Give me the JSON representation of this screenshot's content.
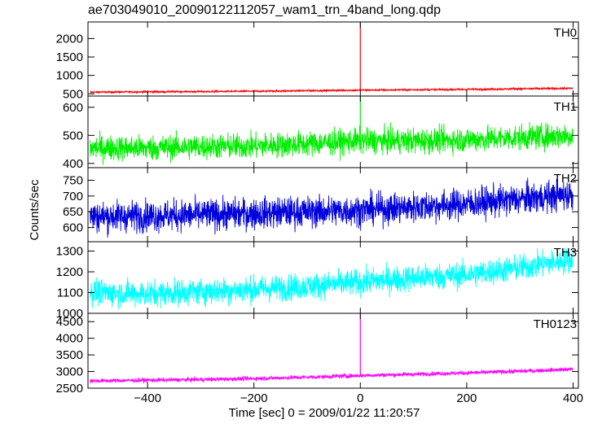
{
  "chart_data": {
    "type": "line",
    "title": "ae703049010_20090122112057_wam1_trn_4band_long.qdp",
    "xlabel": "Time [sec] 0 = 2009/01/22 11:20:57",
    "ylabel": "Counts/sec",
    "xlim": [
      -512,
      410
    ],
    "x_ticks": [
      -400,
      -200,
      0,
      200,
      400
    ],
    "x_tick_labels": [
      "−400",
      "−200",
      "0",
      "200",
      "400"
    ],
    "panels": [
      {
        "name": "TH0",
        "color": "#ff0000",
        "ylim": [
          440,
          2450
        ],
        "y_ticks": [
          500,
          1000,
          1500,
          2000
        ],
        "y_tick_labels": [
          "500",
          "1000",
          "1500",
          "2000"
        ],
        "series": {
          "x": [
            -500,
            -400,
            -300,
            -200,
            -100,
            0,
            100,
            200,
            300,
            400
          ],
          "y": [
            545,
            555,
            560,
            570,
            585,
            600,
            610,
            620,
            635,
            650
          ]
        },
        "noise": 18,
        "spike": {
          "x": 0,
          "y": 2450
        }
      },
      {
        "name": "TH1",
        "color": "#00ee00",
        "ylim": [
          385,
          640
        ],
        "y_ticks": [
          400,
          500,
          600
        ],
        "y_tick_labels": [
          "400",
          "500",
          "600"
        ],
        "series": {
          "x": [
            -500,
            -400,
            -300,
            -200,
            -100,
            0,
            100,
            200,
            300,
            400
          ],
          "y": [
            455,
            455,
            460,
            462,
            470,
            480,
            480,
            485,
            492,
            500
          ]
        },
        "noise": 32,
        "spike": {
          "x": 0,
          "y": 640
        }
      },
      {
        "name": "TH2",
        "color": "#0000dd",
        "ylim": [
          555,
          790
        ],
        "y_ticks": [
          600,
          650,
          700,
          750
        ],
        "y_tick_labels": [
          "600",
          "650",
          "700",
          "750"
        ],
        "series": {
          "x": [
            -500,
            -400,
            -300,
            -200,
            -100,
            0,
            100,
            200,
            300,
            400
          ],
          "y": [
            635,
            637,
            640,
            645,
            650,
            655,
            665,
            675,
            690,
            705
          ]
        },
        "noise": 35
      },
      {
        "name": "TH3",
        "color": "#00ffff",
        "ylim": [
          1000,
          1345
        ],
        "y_ticks": [
          1000,
          1100,
          1200,
          1300
        ],
        "y_tick_labels": [
          "1000",
          "1100",
          "1200",
          "1300"
        ],
        "series": {
          "x": [
            -500,
            -400,
            -300,
            -200,
            -100,
            0,
            100,
            200,
            300,
            400
          ],
          "y": [
            1100,
            1095,
            1105,
            1115,
            1130,
            1150,
            1170,
            1185,
            1220,
            1260
          ]
        },
        "noise": 45
      },
      {
        "name": "TH0123",
        "color": "#ff00ff",
        "ylim": [
          2500,
          4750
        ],
        "y_ticks": [
          2500,
          3000,
          3500,
          4000,
          4500
        ],
        "y_tick_labels": [
          "2500",
          "3000",
          "3500",
          "4000",
          "4500"
        ],
        "series": {
          "x": [
            -500,
            -400,
            -300,
            -200,
            -100,
            0,
            100,
            200,
            300,
            400
          ],
          "y": [
            2720,
            2740,
            2760,
            2790,
            2830,
            2880,
            2920,
            2960,
            3010,
            3070
          ]
        },
        "noise": 45,
        "spike": {
          "x": 0,
          "y": 4750
        }
      }
    ]
  }
}
